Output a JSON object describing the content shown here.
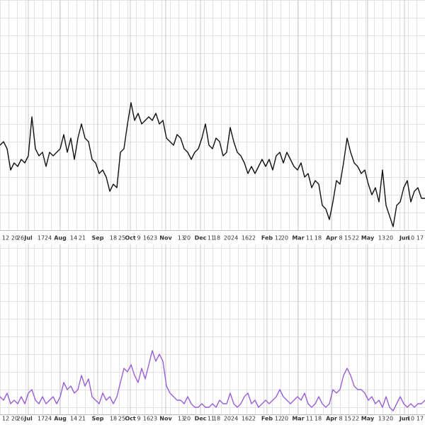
{
  "chart_data": [
    {
      "type": "line",
      "color": "#111111",
      "ylim": [
        0,
        325
      ],
      "xlim": [
        0,
        120
      ],
      "values": [
        120,
        125,
        115,
        85,
        95,
        90,
        100,
        95,
        105,
        160,
        115,
        105,
        110,
        90,
        110,
        105,
        110,
        115,
        135,
        110,
        130,
        100,
        130,
        150,
        130,
        125,
        100,
        95,
        80,
        85,
        75,
        55,
        65,
        60,
        110,
        115,
        150,
        180,
        155,
        165,
        150,
        155,
        160,
        155,
        165,
        150,
        155,
        130,
        125,
        120,
        135,
        130,
        115,
        110,
        100,
        110,
        115,
        130,
        150,
        120,
        115,
        130,
        125,
        105,
        110,
        145,
        125,
        110,
        105,
        95,
        80,
        90,
        80,
        90,
        100,
        90,
        100,
        85,
        105,
        110,
        95,
        110,
        100,
        90,
        85,
        95,
        75,
        80,
        60,
        70,
        65,
        35,
        30,
        15,
        40,
        70,
        65,
        95,
        130,
        110,
        95,
        90,
        80,
        85,
        65,
        50,
        60,
        40,
        85,
        35,
        20,
        5,
        35,
        40,
        60,
        70,
        40,
        55,
        60,
        45,
        45
      ],
      "xticks": [
        {
          "value": 1.6,
          "label": "12"
        },
        {
          "value": 4.2,
          "label": "20"
        },
        {
          "value": 5.8,
          "label": "26"
        },
        {
          "value": 8,
          "label": "Jul"
        },
        {
          "value": 11.6,
          "label": "17"
        },
        {
          "value": 13.6,
          "label": "24"
        },
        {
          "value": 17,
          "label": "Aug"
        },
        {
          "value": 20.8,
          "label": "14"
        },
        {
          "value": 23.2,
          "label": "21"
        },
        {
          "value": 27.6,
          "label": "Sep"
        },
        {
          "value": 32,
          "label": "18"
        },
        {
          "value": 34.4,
          "label": "25"
        },
        {
          "value": 36.8,
          "label": "Oct"
        },
        {
          "value": 39.2,
          "label": "9"
        },
        {
          "value": 41.4,
          "label": "16"
        },
        {
          "value": 43.4,
          "label": "23"
        },
        {
          "value": 46.8,
          "label": "Nov"
        },
        {
          "value": 51.2,
          "label": "13"
        },
        {
          "value": 52.8,
          "label": "20"
        },
        {
          "value": 56.6,
          "label": "Dec"
        },
        {
          "value": 59.6,
          "label": "11"
        },
        {
          "value": 61.2,
          "label": "18"
        },
        {
          "value": 65.2,
          "label": "2024"
        },
        {
          "value": 69.2,
          "label": "16"
        },
        {
          "value": 71.2,
          "label": "22"
        },
        {
          "value": 75.4,
          "label": "Feb"
        },
        {
          "value": 78.6,
          "label": "12"
        },
        {
          "value": 80.4,
          "label": "20"
        },
        {
          "value": 84.2,
          "label": "Mar"
        },
        {
          "value": 87.4,
          "label": "11"
        },
        {
          "value": 89.8,
          "label": "18"
        },
        {
          "value": 93.6,
          "label": "Apr"
        },
        {
          "value": 96.2,
          "label": "8"
        },
        {
          "value": 98.2,
          "label": "15"
        },
        {
          "value": 100.4,
          "label": "22"
        },
        {
          "value": 103.8,
          "label": "May"
        },
        {
          "value": 107.8,
          "label": "13"
        },
        {
          "value": 110,
          "label": "20"
        },
        {
          "value": 114.2,
          "label": "Jun"
        },
        {
          "value": 116,
          "label": "10"
        },
        {
          "value": 118.6,
          "label": "17"
        }
      ]
    },
    {
      "type": "line",
      "color": "#9a5fd6",
      "ylim": [
        0,
        240
      ],
      "xlim": [
        0,
        120
      ],
      "values": [
        25,
        20,
        30,
        15,
        20,
        15,
        25,
        15,
        30,
        35,
        20,
        15,
        25,
        15,
        20,
        25,
        15,
        25,
        45,
        35,
        40,
        30,
        35,
        55,
        40,
        50,
        25,
        20,
        15,
        30,
        20,
        25,
        15,
        25,
        45,
        65,
        60,
        70,
        55,
        45,
        65,
        50,
        70,
        90,
        75,
        85,
        75,
        40,
        30,
        25,
        20,
        20,
        15,
        25,
        15,
        10,
        10,
        15,
        10,
        10,
        15,
        10,
        20,
        15,
        15,
        30,
        15,
        10,
        15,
        25,
        30,
        15,
        20,
        10,
        15,
        20,
        15,
        20,
        25,
        35,
        25,
        20,
        15,
        20,
        25,
        20,
        30,
        15,
        10,
        15,
        25,
        15,
        10,
        15,
        35,
        30,
        35,
        55,
        65,
        55,
        40,
        35,
        35,
        30,
        20,
        25,
        15,
        20,
        10,
        25,
        10,
        5,
        15,
        25,
        15,
        10,
        15,
        10,
        15,
        15,
        20
      ],
      "xticks": [
        {
          "value": 1.6,
          "label": "12"
        },
        {
          "value": 4.2,
          "label": "20"
        },
        {
          "value": 5.8,
          "label": "26"
        },
        {
          "value": 8,
          "label": "Jul"
        },
        {
          "value": 11.6,
          "label": "17"
        },
        {
          "value": 13.6,
          "label": "24"
        },
        {
          "value": 17,
          "label": "Aug"
        },
        {
          "value": 20.8,
          "label": "14"
        },
        {
          "value": 23.2,
          "label": "21"
        },
        {
          "value": 27.6,
          "label": "Sep"
        },
        {
          "value": 32,
          "label": "18"
        },
        {
          "value": 34.4,
          "label": "25"
        },
        {
          "value": 36.8,
          "label": "Oct"
        },
        {
          "value": 39.2,
          "label": "9"
        },
        {
          "value": 41.4,
          "label": "16"
        },
        {
          "value": 43.4,
          "label": "23"
        },
        {
          "value": 46.8,
          "label": "Nov"
        },
        {
          "value": 51.2,
          "label": "13"
        },
        {
          "value": 52.8,
          "label": "20"
        },
        {
          "value": 56.6,
          "label": "Dec"
        },
        {
          "value": 59.6,
          "label": "11"
        },
        {
          "value": 61.2,
          "label": "18"
        },
        {
          "value": 65.2,
          "label": "2024"
        },
        {
          "value": 69.2,
          "label": "16"
        },
        {
          "value": 71.2,
          "label": "22"
        },
        {
          "value": 75.4,
          "label": "Feb"
        },
        {
          "value": 78.6,
          "label": "12"
        },
        {
          "value": 80.4,
          "label": "20"
        },
        {
          "value": 84.2,
          "label": "Mar"
        },
        {
          "value": 87.4,
          "label": "11"
        },
        {
          "value": 89.8,
          "label": "18"
        },
        {
          "value": 93.6,
          "label": "Apr"
        },
        {
          "value": 96.2,
          "label": "8"
        },
        {
          "value": 98.2,
          "label": "15"
        },
        {
          "value": 100.4,
          "label": "22"
        },
        {
          "value": 103.8,
          "label": "May"
        },
        {
          "value": 107.8,
          "label": "13"
        },
        {
          "value": 110,
          "label": "20"
        },
        {
          "value": 114.2,
          "label": "Jun"
        },
        {
          "value": 116,
          "label": "10"
        },
        {
          "value": 118.6,
          "label": "17"
        }
      ]
    }
  ]
}
